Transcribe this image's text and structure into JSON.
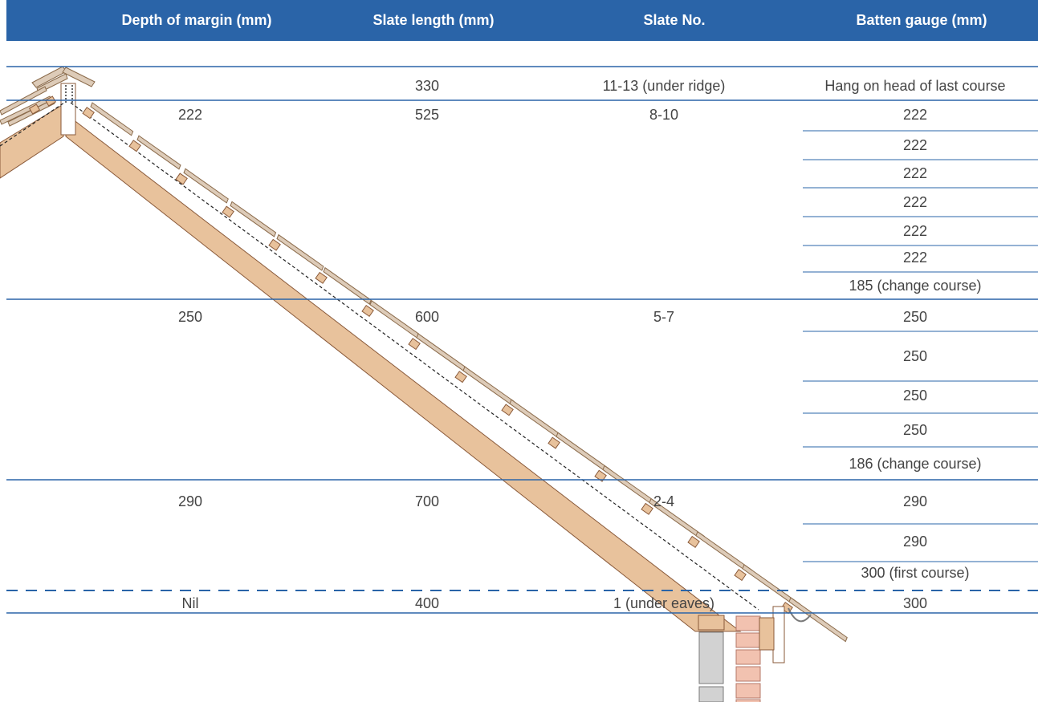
{
  "colors": {
    "header_bg": "#2a64a8",
    "rule_line": "#2a64a8",
    "timber": "#e8c29c",
    "slate": "#ddcbb8",
    "brick": "#f2c2b0",
    "block": "#d2d2d2"
  },
  "table": {
    "headers": [
      "Depth of margin (mm)",
      "Slate length (mm)",
      "Slate No.",
      "Batten gauge (mm)"
    ],
    "groups": [
      {
        "depth": "",
        "length": "330",
        "slate_no": "11-13 (under ridge)",
        "gauges": [
          "Hang on head of last course"
        ]
      },
      {
        "depth": "222",
        "length": "525",
        "slate_no": "8-10",
        "gauges": [
          "222",
          "222",
          "222",
          "222",
          "222",
          "222",
          "185 (change course)"
        ]
      },
      {
        "depth": "250",
        "length": "600",
        "slate_no": "5-7",
        "gauges": [
          "250",
          "250",
          "250",
          "250",
          "186 (change course)"
        ]
      },
      {
        "depth": "290",
        "length": "700",
        "slate_no": "2-4",
        "gauges": [
          "290",
          "290",
          "300 (first course)"
        ]
      },
      {
        "depth": "Nil",
        "length": "400",
        "slate_no": "1 (under eaves)",
        "gauges": [
          "300"
        ]
      }
    ]
  }
}
